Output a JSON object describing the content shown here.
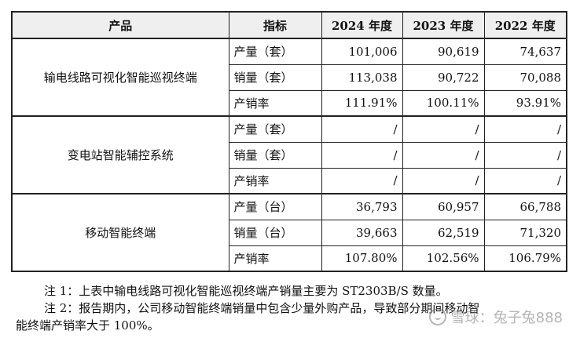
{
  "table": {
    "headers": [
      "产品",
      "指标",
      "2024 年度",
      "2023 年度",
      "2022 年度"
    ],
    "groups": [
      {
        "product": "输电线路可视化智能巡视终端",
        "rows": [
          {
            "metric": "产量（套）",
            "v2024": "101,006",
            "v2023": "90,619",
            "v2022": "74,637"
          },
          {
            "metric": "销量（套）",
            "v2024": "113,038",
            "v2023": "90,722",
            "v2022": "70,088"
          },
          {
            "metric": "产销率",
            "v2024": "111.91%",
            "v2023": "100.11%",
            "v2022": "93.91%"
          }
        ]
      },
      {
        "product": "变电站智能辅控系统",
        "rows": [
          {
            "metric": "产量（套）",
            "v2024": "/",
            "v2023": "/",
            "v2022": "/"
          },
          {
            "metric": "销量（套）",
            "v2024": "/",
            "v2023": "/",
            "v2022": "/"
          },
          {
            "metric": "产销率",
            "v2024": "/",
            "v2023": "/",
            "v2022": "/"
          }
        ]
      },
      {
        "product": "移动智能终端",
        "rows": [
          {
            "metric": "产量（台）",
            "v2024": "36,793",
            "v2023": "60,957",
            "v2022": "66,788"
          },
          {
            "metric": "销量（台）",
            "v2024": "39,663",
            "v2023": "62,519",
            "v2022": "71,320"
          },
          {
            "metric": "产销率",
            "v2024": "107.80%",
            "v2023": "102.56%",
            "v2022": "106.79%"
          }
        ]
      }
    ]
  },
  "notes": {
    "note1": "注 1：上表中输电线路可视化智能巡视终端产销量主要为 ST2303B/S 数量。",
    "note2_line1": "注 2：报告期内，公司移动智能终端销量中包含少量外购产品，导致部分期间移动智",
    "note2_line2": "能终端产销率大于 100%。"
  },
  "watermark": {
    "text": "雪球：兔子兔888",
    "icon": "snowball-logo-icon"
  }
}
